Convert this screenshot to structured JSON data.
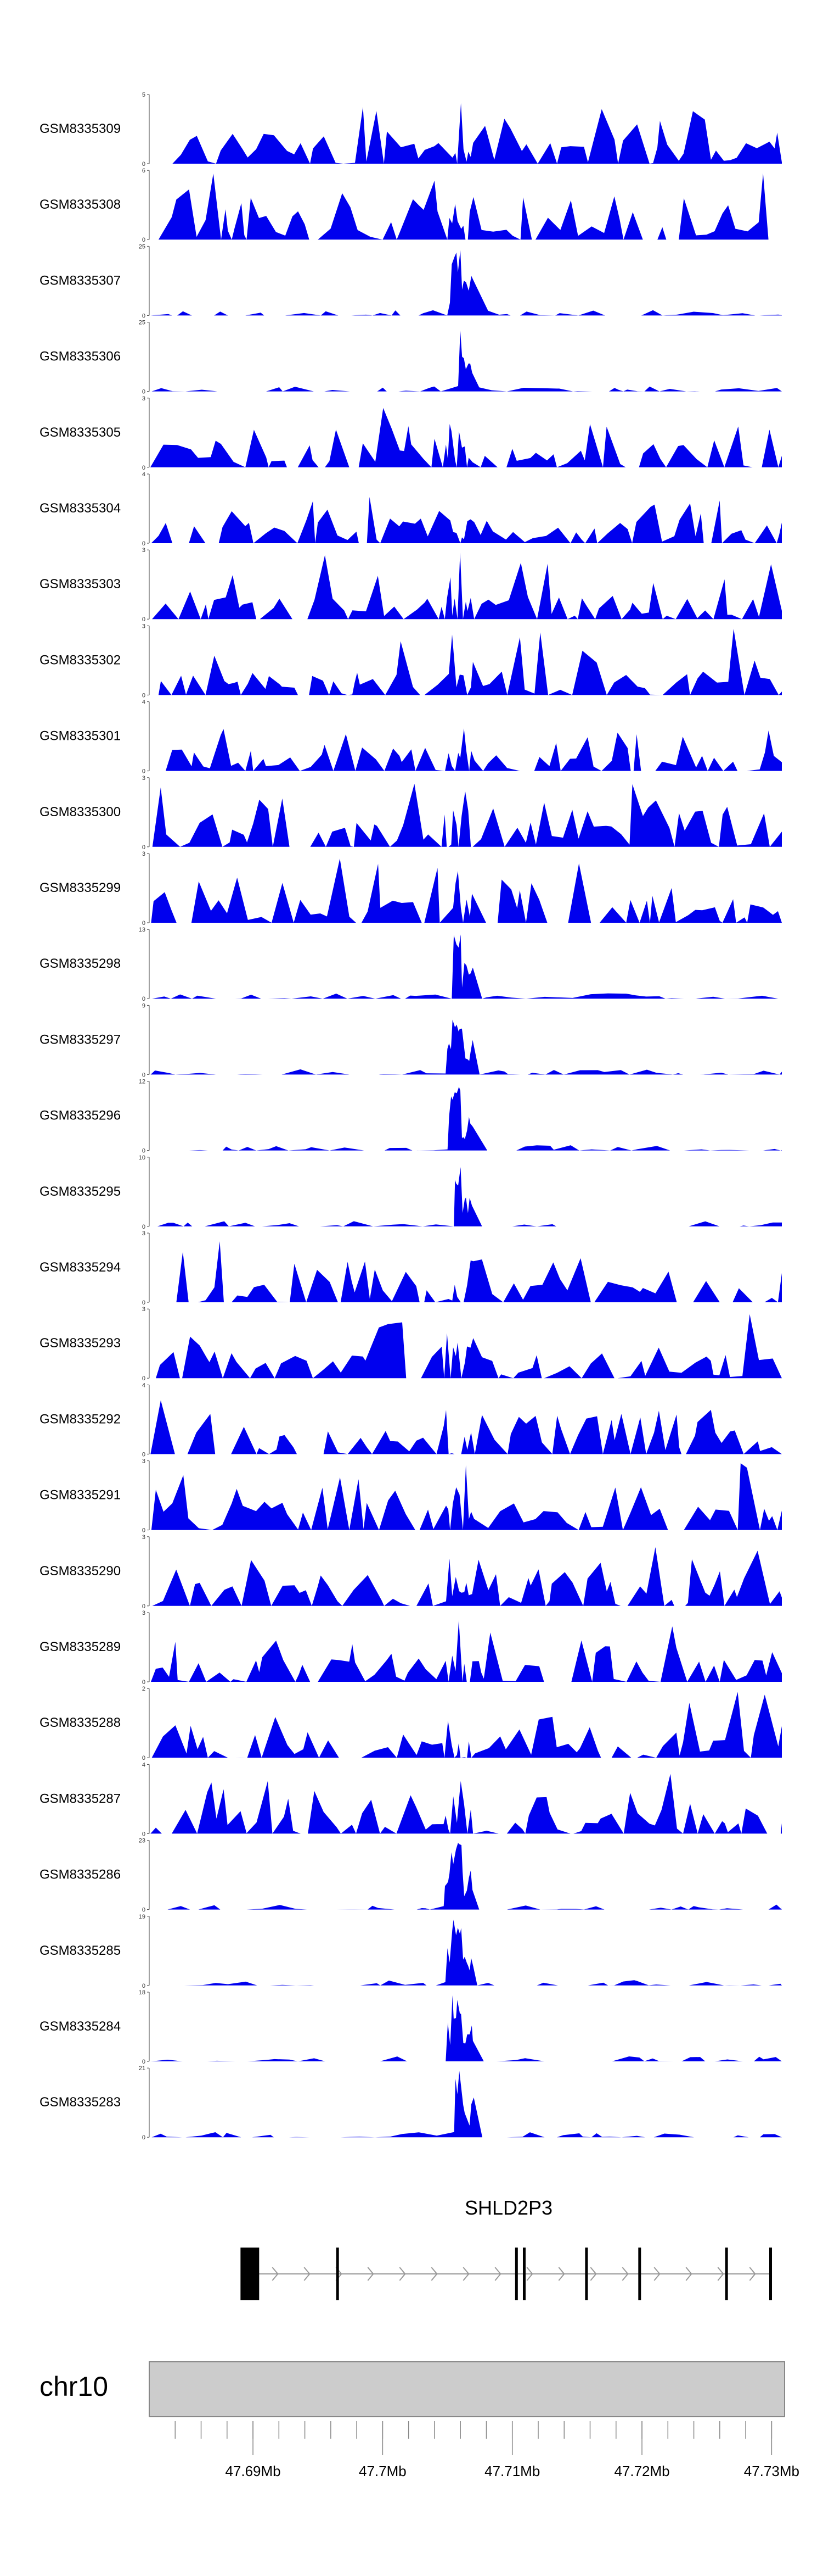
{
  "chart_data": {
    "type": "area",
    "track_color": "#0000ee",
    "tracks": [
      {
        "name": "GSM8335309",
        "ymax": 5,
        "ymin": 0
      },
      {
        "name": "GSM8335308",
        "ymax": 6,
        "ymin": 0
      },
      {
        "name": "GSM8335307",
        "ymax": 25,
        "ymin": 0
      },
      {
        "name": "GSM8335306",
        "ymax": 25,
        "ymin": 0
      },
      {
        "name": "GSM8335305",
        "ymax": 3,
        "ymin": 0
      },
      {
        "name": "GSM8335304",
        "ymax": 4,
        "ymin": 0
      },
      {
        "name": "GSM8335303",
        "ymax": 3,
        "ymin": 0
      },
      {
        "name": "GSM8335302",
        "ymax": 3,
        "ymin": 0
      },
      {
        "name": "GSM8335301",
        "ymax": 4,
        "ymin": 0
      },
      {
        "name": "GSM8335300",
        "ymax": 3,
        "ymin": 0
      },
      {
        "name": "GSM8335299",
        "ymax": 3,
        "ymin": 0
      },
      {
        "name": "GSM8335298",
        "ymax": 13,
        "ymin": 0
      },
      {
        "name": "GSM8335297",
        "ymax": 9,
        "ymin": 0
      },
      {
        "name": "GSM8335296",
        "ymax": 12,
        "ymin": 0
      },
      {
        "name": "GSM8335295",
        "ymax": 10,
        "ymin": 0
      },
      {
        "name": "GSM8335294",
        "ymax": 3,
        "ymin": 0
      },
      {
        "name": "GSM8335293",
        "ymax": 3,
        "ymin": 0
      },
      {
        "name": "GSM8335292",
        "ymax": 4,
        "ymin": 0
      },
      {
        "name": "GSM8335291",
        "ymax": 3,
        "ymin": 0
      },
      {
        "name": "GSM8335290",
        "ymax": 3,
        "ymin": 0
      },
      {
        "name": "GSM8335289",
        "ymax": 3,
        "ymin": 0
      },
      {
        "name": "GSM8335288",
        "ymax": 2,
        "ymin": 0
      },
      {
        "name": "GSM8335287",
        "ymax": 4,
        "ymin": 0
      },
      {
        "name": "GSM8335286",
        "ymax": 23,
        "ymin": 0
      },
      {
        "name": "GSM8335285",
        "ymax": 19,
        "ymin": 0
      },
      {
        "name": "GSM8335284",
        "ymax": 18,
        "ymin": 0
      },
      {
        "name": "GSM8335283",
        "ymax": 21,
        "ymin": 0
      }
    ],
    "gene": {
      "name": "SHLD2P3",
      "strand": "+",
      "exons_mb": [
        47.6898,
        47.6965,
        47.7103,
        47.7109,
        47.7157,
        47.7198,
        47.7265,
        47.7299
      ]
    },
    "chromosome": "chr10",
    "xlim_mb": [
      47.682,
      47.731
    ],
    "axis_labels": [
      "47.69Mb",
      "47.7Mb",
      "47.71Mb",
      "47.72Mb",
      "47.73Mb"
    ],
    "axis_label_positions_mb": [
      47.69,
      47.7,
      47.71,
      47.72,
      47.73
    ]
  }
}
